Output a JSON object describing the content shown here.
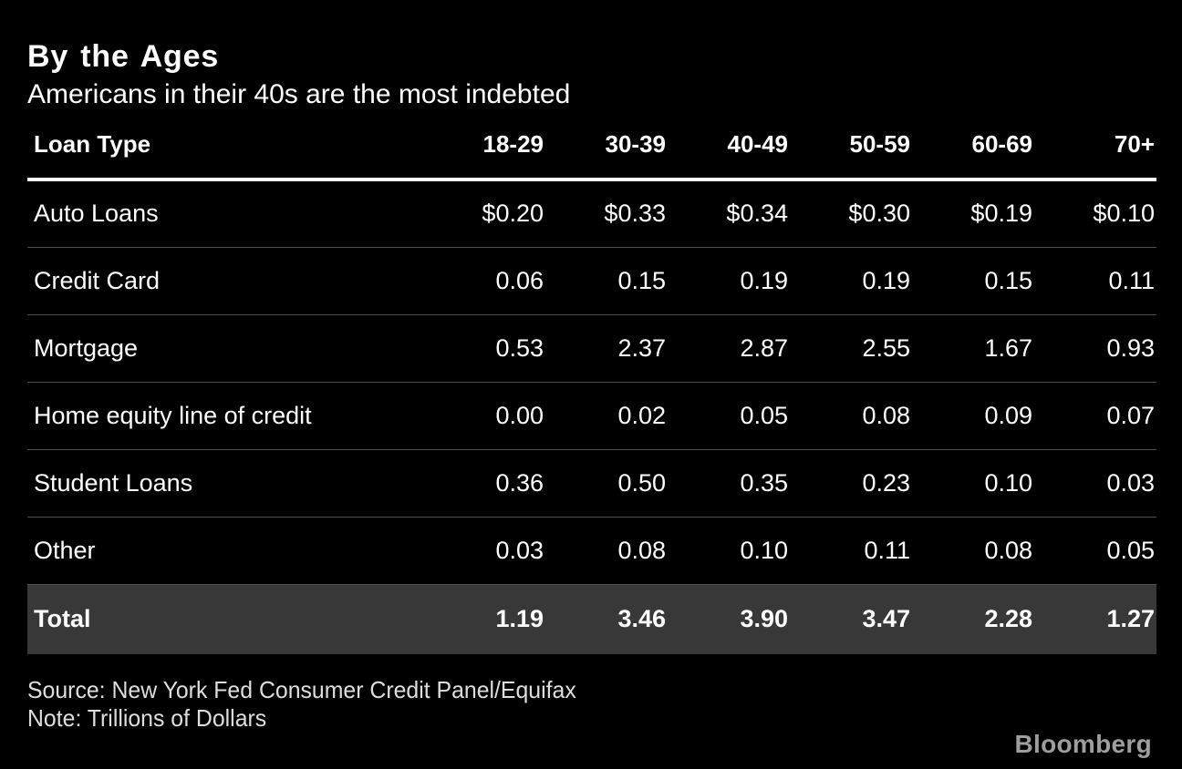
{
  "header": {
    "title": "By the Ages",
    "subtitle": "Americans in their 40s are the most indebted"
  },
  "chart_data": {
    "type": "table",
    "title": "By the Ages",
    "subtitle": "Americans in their 40s are the most indebted",
    "units": "Trillions of Dollars",
    "columns": [
      "Loan Type",
      "18-29",
      "30-39",
      "40-49",
      "50-59",
      "60-69",
      "70+"
    ],
    "rows": [
      {
        "label": "Auto Loans",
        "values": [
          "$0.20",
          "$0.33",
          "$0.34",
          "$0.30",
          "$0.19",
          "$0.10"
        ]
      },
      {
        "label": "Credit Card",
        "values": [
          "0.06",
          "0.15",
          "0.19",
          "0.19",
          "0.15",
          "0.11"
        ]
      },
      {
        "label": "Mortgage",
        "values": [
          "0.53",
          "2.37",
          "2.87",
          "2.55",
          "1.67",
          "0.93"
        ]
      },
      {
        "label": "Home equity line of credit",
        "values": [
          "0.00",
          "0.02",
          "0.05",
          "0.08",
          "0.09",
          "0.07"
        ]
      },
      {
        "label": "Student Loans",
        "values": [
          "0.36",
          "0.50",
          "0.35",
          "0.23",
          "0.10",
          "0.03"
        ]
      },
      {
        "label": "Other",
        "values": [
          "0.03",
          "0.08",
          "0.10",
          "0.11",
          "0.08",
          "0.05"
        ]
      }
    ],
    "total_row": {
      "label": "Total",
      "values": [
        "1.19",
        "3.46",
        "3.90",
        "3.47",
        "2.28",
        "1.27"
      ]
    }
  },
  "footer": {
    "source": "Source: New York Fed Consumer Credit Panel/Equifax",
    "note": "Note: Trillions of Dollars",
    "brand": "Bloomberg"
  },
  "colors": {
    "background": "#000000",
    "text": "#ffffff",
    "row_separator": "#4f4f4f",
    "total_row_background": "#383838",
    "header_rule": "#ffffff",
    "footer_text": "#dedede",
    "brand_text": "#9e9e9e"
  }
}
